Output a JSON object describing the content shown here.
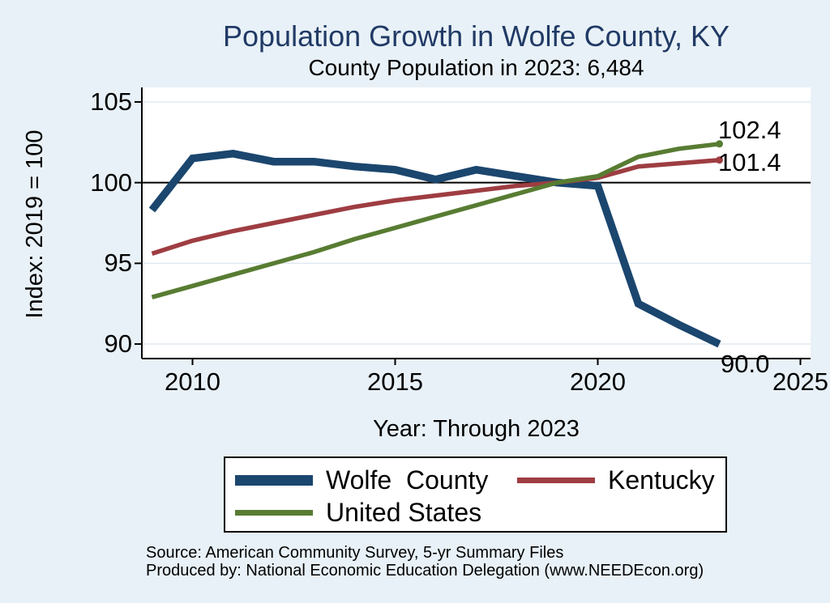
{
  "chart_data": {
    "type": "line",
    "title": "Population Growth in Wolfe County, KY",
    "subtitle": "County Population in 2023: 6,484",
    "xlabel": "Year: Through 2023",
    "ylabel": "Index: 2019 = 100",
    "x": [
      2009,
      2010,
      2011,
      2012,
      2013,
      2014,
      2015,
      2016,
      2017,
      2018,
      2019,
      2020,
      2021,
      2022,
      2023
    ],
    "series": [
      {
        "name": "Wolfe  County",
        "color": "#1b466e",
        "line_width": 9.5,
        "end_label": "90.0",
        "end_marker": false,
        "values": [
          98.3,
          101.5,
          101.8,
          101.3,
          101.3,
          101.0,
          100.8,
          100.2,
          100.8,
          100.4,
          100.0,
          99.8,
          92.5,
          91.2,
          90.0
        ]
      },
      {
        "name": "Kentucky",
        "color": "#9e3d42",
        "line_width": 5.5,
        "end_label": "101.4",
        "end_marker": true,
        "values": [
          95.6,
          96.4,
          97.0,
          97.5,
          98.0,
          98.5,
          98.9,
          99.2,
          99.5,
          99.8,
          100.0,
          100.3,
          101.0,
          101.2,
          101.4
        ]
      },
      {
        "name": "United States",
        "color": "#587c32",
        "line_width": 5.5,
        "end_label": "102.4",
        "end_marker": true,
        "values": [
          92.9,
          93.6,
          94.3,
          95.0,
          95.7,
          96.5,
          97.2,
          97.9,
          98.6,
          99.3,
          100.0,
          100.4,
          101.6,
          102.1,
          102.4
        ]
      }
    ],
    "xticks": [
      2010,
      2015,
      2020,
      2025
    ],
    "yticks": [
      105,
      100,
      95,
      90
    ],
    "xlim": [
      2008.75,
      2025.25
    ],
    "ylim": [
      89.1,
      105.9
    ],
    "refline": 100,
    "grid": true,
    "legend_position": "bottom"
  },
  "colors": {
    "background": "#e8f1f7",
    "plot_background": "#ffffff",
    "grid": "#dfe9f0",
    "axis": "#000000",
    "title": "#213a66"
  },
  "footer": {
    "line1": "Source: American Community Survey, 5-yr Summary Files",
    "line2": "Produced by: National Economic Education Delegation (www.NEEDEcon.org)"
  }
}
